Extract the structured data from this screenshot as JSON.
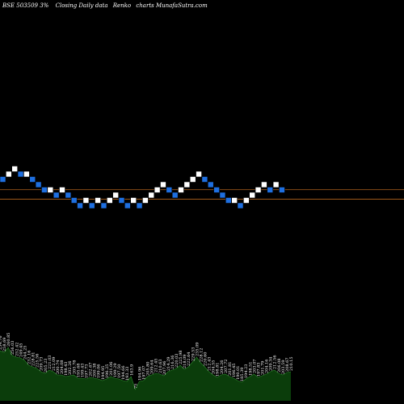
{
  "header": {
    "symbol": "BSE 503509 3%",
    "description": "Closing Daily data",
    "chart_kind": "Renko",
    "watermark": "charts MunafaSutra.com"
  },
  "colors": {
    "background": "#000000",
    "up_brick": "#ffffff",
    "down_brick": "#1e6fe0",
    "brick_edge": "#000000",
    "level_line": "#b5651d",
    "volume_fill": "#0b3d0b",
    "volume_line": "#2e8b2e",
    "label_text": "#ffffff"
  },
  "chart_data": {
    "type": "renko",
    "bricks": [
      {
        "dir": "down",
        "level": 14
      },
      {
        "dir": "up",
        "level": 15
      },
      {
        "dir": "up",
        "level": 16
      },
      {
        "dir": "down",
        "level": 15
      },
      {
        "dir": "up",
        "level": 15
      },
      {
        "dir": "down",
        "level": 14
      },
      {
        "dir": "down",
        "level": 13
      },
      {
        "dir": "down",
        "level": 12
      },
      {
        "dir": "up",
        "level": 12
      },
      {
        "dir": "down",
        "level": 11
      },
      {
        "dir": "up",
        "level": 12
      },
      {
        "dir": "down",
        "level": 11
      },
      {
        "dir": "down",
        "level": 10
      },
      {
        "dir": "down",
        "level": 9
      },
      {
        "dir": "up",
        "level": 10
      },
      {
        "dir": "down",
        "level": 9
      },
      {
        "dir": "up",
        "level": 10
      },
      {
        "dir": "down",
        "level": 9
      },
      {
        "dir": "up",
        "level": 10
      },
      {
        "dir": "up",
        "level": 11
      },
      {
        "dir": "down",
        "level": 10
      },
      {
        "dir": "down",
        "level": 9
      },
      {
        "dir": "up",
        "level": 10
      },
      {
        "dir": "down",
        "level": 9
      },
      {
        "dir": "up",
        "level": 10
      },
      {
        "dir": "up",
        "level": 11
      },
      {
        "dir": "up",
        "level": 12
      },
      {
        "dir": "up",
        "level": 13
      },
      {
        "dir": "down",
        "level": 12
      },
      {
        "dir": "down",
        "level": 11
      },
      {
        "dir": "up",
        "level": 12
      },
      {
        "dir": "up",
        "level": 13
      },
      {
        "dir": "up",
        "level": 14
      },
      {
        "dir": "up",
        "level": 15
      },
      {
        "dir": "down",
        "level": 14
      },
      {
        "dir": "down",
        "level": 13
      },
      {
        "dir": "down",
        "level": 12
      },
      {
        "dir": "down",
        "level": 11
      },
      {
        "dir": "down",
        "level": 10
      },
      {
        "dir": "up",
        "level": 10
      },
      {
        "dir": "down",
        "level": 9
      },
      {
        "dir": "up",
        "level": 10
      },
      {
        "dir": "up",
        "level": 11
      },
      {
        "dir": "up",
        "level": 12
      },
      {
        "dir": "up",
        "level": 13
      },
      {
        "dir": "down",
        "level": 12
      },
      {
        "dir": "up",
        "level": 13
      },
      {
        "dir": "down",
        "level": 12
      }
    ],
    "levels": [
      {
        "name": "upper",
        "level": 11.5
      },
      {
        "name": "lower",
        "level": 9.7
      }
    ],
    "volume": [
      {
        "label": "254.76",
        "v": 62
      },
      {
        "label": "258.69",
        "v": 60
      },
      {
        "label": "260.85",
        "v": 66
      },
      {
        "label": "256.03",
        "v": 56
      },
      {
        "label": "252.42",
        "v": 54
      },
      {
        "label": "249.45",
        "v": 53
      },
      {
        "label": "244.25",
        "v": 50
      },
      {
        "label": "232.16",
        "v": 44
      },
      {
        "label": "228.81",
        "v": 42
      },
      {
        "label": "225.56",
        "v": 40
      },
      {
        "label": "209.73",
        "v": 36
      },
      {
        "label": "205.23",
        "v": 34
      },
      {
        "label": "221.03",
        "v": 38
      },
      {
        "label": "212.09",
        "v": 36
      },
      {
        "label": "200.74",
        "v": 32
      },
      {
        "label": "204.08",
        "v": 32
      },
      {
        "label": "198.43",
        "v": 30
      },
      {
        "label": "202.26",
        "v": 31
      },
      {
        "label": "205.78",
        "v": 32
      },
      {
        "label": "195.68",
        "v": 28
      },
      {
        "label": "199.43",
        "v": 28
      },
      {
        "label": "197.73",
        "v": 27
      },
      {
        "label": "202.67",
        "v": 29
      },
      {
        "label": "200.38",
        "v": 28
      },
      {
        "label": "199.06",
        "v": 27
      },
      {
        "label": "194.95",
        "v": 25
      },
      {
        "label": "196.25",
        "v": 27
      },
      {
        "label": "201.06",
        "v": 30
      },
      {
        "label": "199.29",
        "v": 28
      },
      {
        "label": "197.50",
        "v": 27
      },
      {
        "label": "194.66",
        "v": 25
      },
      {
        "label": "193.33",
        "v": 24
      },
      {
        "label": "163.9",
        "v": 30
      },
      {
        "label": "75",
        "v": 14
      },
      {
        "label": "194.96",
        "v": 24
      },
      {
        "label": "197.07",
        "v": 25
      },
      {
        "label": "205.80",
        "v": 30
      },
      {
        "label": "209.64",
        "v": 32
      },
      {
        "label": "212.45",
        "v": 34
      },
      {
        "label": "210.63",
        "v": 33
      },
      {
        "label": "207.96",
        "v": 31
      },
      {
        "label": "214.29",
        "v": 36
      },
      {
        "label": "216.36",
        "v": 38
      },
      {
        "label": "220.03",
        "v": 40
      },
      {
        "label": "225.98",
        "v": 44
      },
      {
        "label": "218.09",
        "v": 39
      },
      {
        "label": "222.64",
        "v": 42
      },
      {
        "label": "229.53",
        "v": 48
      },
      {
        "label": "235.09",
        "v": 54
      },
      {
        "label": "228.12",
        "v": 47
      },
      {
        "label": "220.60",
        "v": 42
      },
      {
        "label": "212.43",
        "v": 36
      },
      {
        "label": "204.55",
        "v": 32
      },
      {
        "label": "198.81",
        "v": 29
      },
      {
        "label": "204.26",
        "v": 32
      },
      {
        "label": "207.72",
        "v": 33
      },
      {
        "label": "201.81",
        "v": 30
      },
      {
        "label": "196.45",
        "v": 28
      },
      {
        "label": "190.01",
        "v": 25
      },
      {
        "label": "185.39",
        "v": 23
      },
      {
        "label": "194.23",
        "v": 27
      },
      {
        "label": "198.51",
        "v": 30
      },
      {
        "label": "203.07",
        "v": 33
      },
      {
        "label": "197.83",
        "v": 29
      },
      {
        "label": "201.79",
        "v": 31
      },
      {
        "label": "204.16",
        "v": 33
      },
      {
        "label": "209.34",
        "v": 36
      },
      {
        "label": "212.56",
        "v": 38
      },
      {
        "label": "206.08",
        "v": 34
      },
      {
        "label": "203.59",
        "v": 32
      },
      {
        "label": "208.67",
        "v": 35
      },
      {
        "label": "210.15",
        "v": 36
      }
    ]
  }
}
